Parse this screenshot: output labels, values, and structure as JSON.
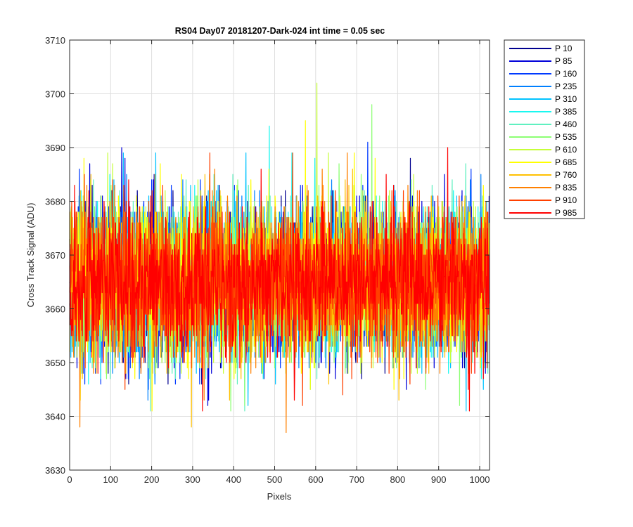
{
  "chart_data": {
    "type": "line",
    "title": "RS04 Day07 20181207-Dark-024 int time = 0.05 sec",
    "xlabel": "Pixels",
    "ylabel": "Cross Track Signal (ADU)",
    "xlim": [
      0,
      1024
    ],
    "ylim": [
      3630,
      3710
    ],
    "xticks": [
      0,
      100,
      200,
      300,
      400,
      500,
      600,
      700,
      800,
      900,
      1000
    ],
    "yticks": [
      3630,
      3640,
      3650,
      3660,
      3670,
      3680,
      3690,
      3700,
      3710
    ],
    "grid": true,
    "legend_position": "outside-right",
    "noise": {
      "mean": 3665,
      "std_dev": 7
    },
    "series": [
      {
        "name": "P 10",
        "color": "#00008F"
      },
      {
        "name": "P 85",
        "color": "#0000D9"
      },
      {
        "name": "P 160",
        "color": "#0039FF"
      },
      {
        "name": "P 235",
        "color": "#0080FF"
      },
      {
        "name": "P 310",
        "color": "#00C3FF"
      },
      {
        "name": "P 385",
        "color": "#1AF7F0"
      },
      {
        "name": "P 460",
        "color": "#60F0C0"
      },
      {
        "name": "P 535",
        "color": "#8CFF73"
      },
      {
        "name": "P 610",
        "color": "#C6FF39"
      },
      {
        "name": "P 685",
        "color": "#FFFF00"
      },
      {
        "name": "P 760",
        "color": "#FFC000"
      },
      {
        "name": "P 835",
        "color": "#FF8000"
      },
      {
        "name": "P 910",
        "color": "#FF4000"
      },
      {
        "name": "P 985",
        "color": "#FF0000"
      }
    ],
    "annotated_peaks": [
      {
        "series": "P 610",
        "x": 603,
        "y": 3702
      },
      {
        "series": "P 535",
        "x": 737,
        "y": 3698
      },
      {
        "series": "P 685",
        "x": 575,
        "y": 3695
      },
      {
        "series": "P 385",
        "x": 487,
        "y": 3694
      },
      {
        "series": "P 160",
        "x": 727,
        "y": 3691
      },
      {
        "series": "P 985",
        "x": 922,
        "y": 3690
      },
      {
        "series": "P 85",
        "x": 127,
        "y": 3690
      },
      {
        "series": "P 835",
        "x": 677,
        "y": 3689
      },
      {
        "series": "P 760",
        "x": 297,
        "y": 3638
      },
      {
        "series": "P 835",
        "x": 528,
        "y": 3637
      },
      {
        "series": "P 835",
        "x": 25,
        "y": 3638
      },
      {
        "series": "P 310",
        "x": 967,
        "y": 3641
      },
      {
        "series": "P 985",
        "x": 975,
        "y": 3641
      }
    ]
  }
}
